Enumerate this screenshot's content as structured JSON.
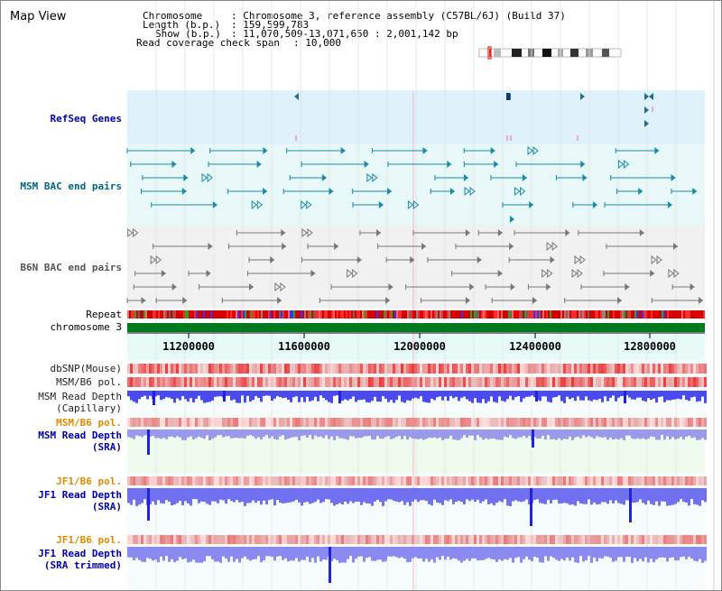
{
  "view_title": "Map View",
  "header": {
    "chromosome_label": "Chromosome",
    "chromosome_value": ": Chromosome 3, reference assembly (C57BL/6J) (Build 37)",
    "length_label": "Length (b.p.)",
    "length_value": ": 159,599,783",
    "show_label": "Show (b.p.)",
    "show_value": ": 11,070,509-13,071,650 : 2,001,142 bp",
    "coverage_label": "Read coverage check span",
    "coverage_value": ": 10,000"
  },
  "tracks": {
    "refseq": "RefSeq Genes",
    "msm_bac": "MSM BAC end pairs",
    "b6n_bac": "B6N BAC end pairs",
    "repeat": "Repeat",
    "chromosome": "chromosome 3",
    "dbsnp": "dbSNP(Mouse)",
    "msm_b6_pol_1": "MSM/B6 pol.",
    "msm_read_depth_cap_1": "MSM Read Depth",
    "msm_read_depth_cap_2": "(Capillary)",
    "msm_b6_pol_2": "MSM/B6 pol.",
    "msm_read_depth_sra_1": "MSM Read Depth",
    "msm_read_depth_sra_2": "(SRA)",
    "jf1_b6_pol_1": "JF1/B6 pol.",
    "jf1_read_depth_sra_1": "JF1 Read Depth",
    "jf1_read_depth_sra_2": "(SRA)",
    "jf1_b6_pol_2": "JF1/B6 pol.",
    "jf1_read_depth_trim_1": "JF1 Read Depth",
    "jf1_read_depth_trim_2": "(SRA trimmed)"
  },
  "axis_ticks": [
    "11200000",
    "11600000",
    "12000000",
    "12400000",
    "12800000"
  ],
  "colors": {
    "label_navy": "#0000aa",
    "label_teal": "#006680",
    "label_gray": "#555555",
    "label_orange": "#e08a00",
    "refseq_bg": "#dff1fb",
    "msm_bg": "#e8f8f8",
    "b6n_bg": "#f1f1f1",
    "axis_bg": "#e6fbf7",
    "chrom_green": "#007a1f"
  }
}
